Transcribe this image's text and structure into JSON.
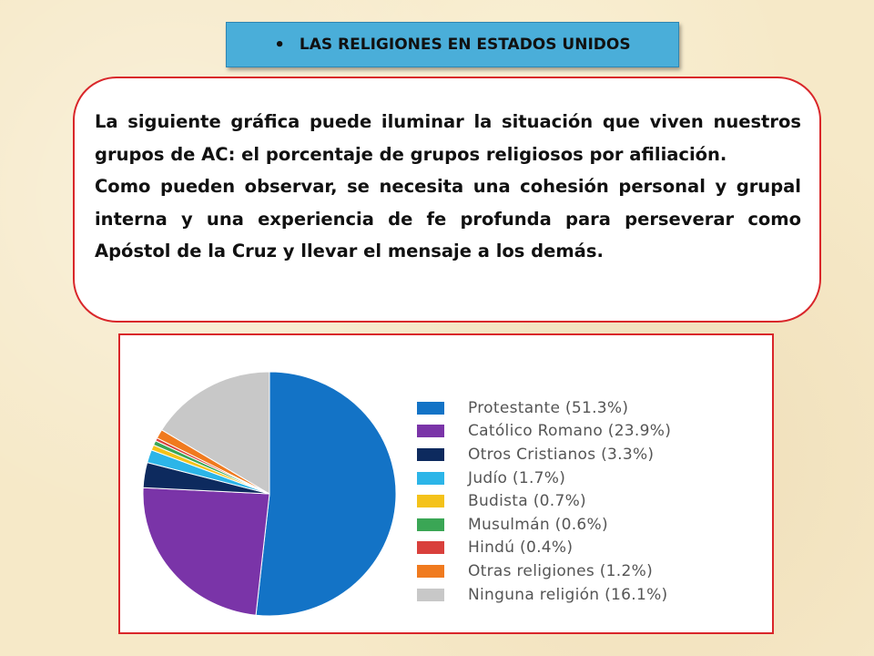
{
  "slide": {
    "title": "LAS RELIGIONES EN ESTADOS UNIDOS",
    "title_bullet": "•",
    "paragraph_1": "La siguiente gráfica puede iluminar la situación que viven nuestros grupos de AC: el porcentaje de grupos religiosos por afiliación.",
    "paragraph_2": "Como pueden observar, se necesita una cohesión personal y grupal interna y una experiencia de fe profunda para perseverar como Apóstol de la Cruz y llevar el mensaje a los demás."
  },
  "chart_data": {
    "type": "pie",
    "legend_position": "right",
    "categories": [
      "Protestante",
      "Católico Romano",
      "Otros Cristianos",
      "Judío",
      "Budista",
      "Musulmán",
      "Hindú",
      "Otras religiones",
      "Ninguna religión"
    ],
    "values": [
      51.3,
      23.9,
      3.3,
      1.7,
      0.7,
      0.6,
      0.4,
      1.2,
      16.1
    ],
    "legend_labels": [
      "Protestante (51.3%)",
      "Católico Romano (23.9%)",
      "Otros Cristianos (3.3%)",
      "Judío (1.7%)",
      "Budista (0.7%)",
      "Musulmán (0.6%)",
      "Hindú (0.4%)",
      "Otras religiones (1.2%)",
      "Ninguna religión (16.1%)"
    ],
    "colors": [
      "#1373c6",
      "#7a34a8",
      "#0d2a5e",
      "#2cb5e8",
      "#f4c21a",
      "#3aa655",
      "#d9403c",
      "#f07a1e",
      "#c8c8c8"
    ]
  }
}
